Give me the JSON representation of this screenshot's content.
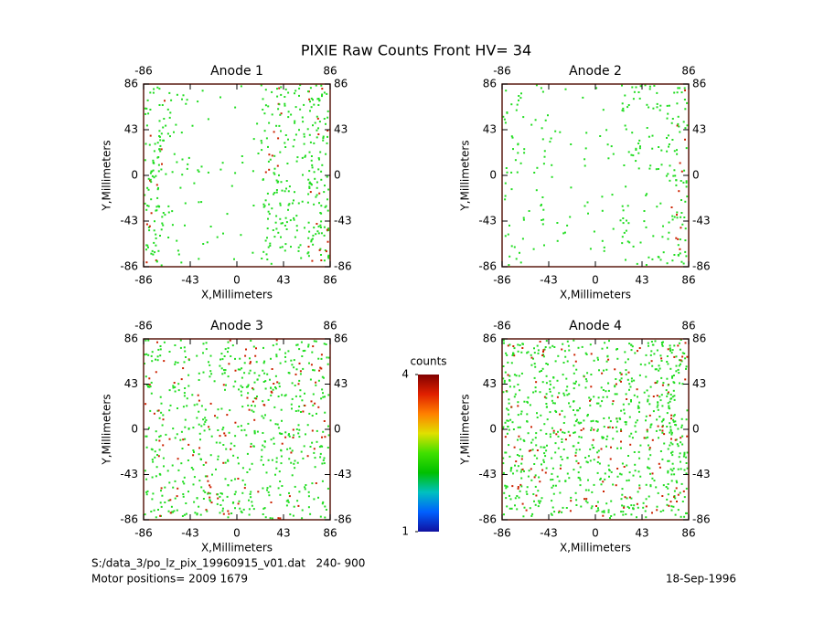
{
  "title": "PIXIE Raw Counts Front HV= 34",
  "chart_data": [
    {
      "type": "density",
      "title": "Anode 1",
      "xlabel": "X,Millimeters",
      "ylabel": "Y,Millimeters",
      "xlim": [
        -86,
        86
      ],
      "ylim": [
        -86,
        86
      ],
      "xticks": [
        -86,
        -43,
        0,
        43,
        86
      ],
      "yticks": [
        -86,
        -43,
        0,
        43,
        86
      ],
      "column_density": [
        110,
        35,
        15,
        10,
        10,
        90,
        70,
        130
      ],
      "dot_color": "#22dd22",
      "hot_color": "#cc2200"
    },
    {
      "type": "density",
      "title": "Anode 2",
      "xlabel": "X,Millimeters",
      "ylabel": "Y,Millimeters",
      "xlim": [
        -86,
        86
      ],
      "ylim": [
        -86,
        86
      ],
      "xticks": [
        -86,
        -43,
        0,
        43,
        86
      ],
      "yticks": [
        -86,
        -43,
        0,
        43,
        86
      ],
      "column_density": [
        45,
        25,
        15,
        10,
        15,
        50,
        40,
        90
      ],
      "dot_color": "#22dd22",
      "hot_color": "#cc2200"
    },
    {
      "type": "density",
      "title": "Anode 3",
      "xlabel": "X,Millimeters",
      "ylabel": "Y,Millimeters",
      "xlim": [
        -86,
        86
      ],
      "ylim": [
        -86,
        86
      ],
      "xticks": [
        -86,
        -43,
        0,
        43,
        86
      ],
      "yticks": [
        -86,
        -43,
        0,
        43,
        86
      ],
      "column_density": [
        90,
        80,
        80,
        85,
        90,
        95,
        90,
        85
      ],
      "dot_color": "#22dd22",
      "hot_color": "#cc2200"
    },
    {
      "type": "density",
      "title": "Anode 4",
      "xlabel": "X,Millimeters",
      "ylabel": "Y,Millimeters",
      "xlim": [
        -86,
        86
      ],
      "ylim": [
        -86,
        86
      ],
      "xticks": [
        -86,
        -43,
        0,
        43,
        86
      ],
      "yticks": [
        -86,
        -43,
        0,
        43,
        86
      ],
      "column_density": [
        130,
        110,
        100,
        100,
        105,
        110,
        115,
        160
      ],
      "dot_color": "#22dd22",
      "hot_color": "#cc2200"
    }
  ],
  "colorbar": {
    "label": "counts",
    "lim": [
      1,
      4
    ],
    "ticks": [
      1,
      4
    ],
    "colors": [
      "#1010a0",
      "#0060ff",
      "#00c0c0",
      "#00c000",
      "#40e000",
      "#e0e000",
      "#ff8000",
      "#e02000",
      "#800000"
    ]
  },
  "footer": {
    "file": "S:/data_3/po_lz_pix_19960915_v01.dat   240- 900",
    "motor": "Motor positions= 2009 1679",
    "date": "18-Sep-1996"
  }
}
